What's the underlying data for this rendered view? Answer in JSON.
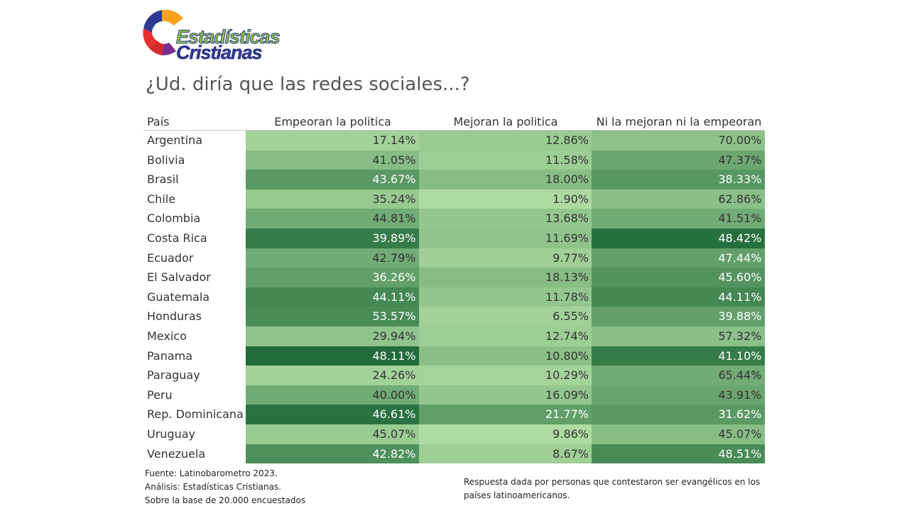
{
  "logo": {
    "line1": "Estadísticas",
    "line2": "Cristianas"
  },
  "chart_data": {
    "type": "table",
    "title": "¿Ud. diría que las redes sociales...?",
    "columns": [
      "País",
      "Empeoran la politica",
      "Mejoran la politica",
      "Ni la mejoran ni la empeoran"
    ],
    "rows": [
      {
        "country": "Argentina",
        "values": [
          "17.14%",
          "12.86%",
          "70.00%"
        ],
        "shades": [
          0.12,
          0.18,
          0.26
        ]
      },
      {
        "country": "Bolivia",
        "values": [
          "41.05%",
          "11.58%",
          "47.37%"
        ],
        "shades": [
          0.3,
          0.16,
          0.48
        ]
      },
      {
        "country": "Brasil",
        "values": [
          "43.67%",
          "18.00%",
          "38.33%"
        ],
        "shades": [
          0.6,
          0.3,
          0.62
        ]
      },
      {
        "country": "Chile",
        "values": [
          "35.24%",
          "1.90%",
          "62.86%"
        ],
        "shades": [
          0.2,
          0.05,
          0.28
        ]
      },
      {
        "country": "Colombia",
        "values": [
          "44.81%",
          "13.68%",
          "41.51%"
        ],
        "shades": [
          0.45,
          0.22,
          0.45
        ]
      },
      {
        "country": "Costa Rica",
        "values": [
          "39.89%",
          "11.69%",
          "48.42%"
        ],
        "shades": [
          0.85,
          0.25,
          0.95
        ]
      },
      {
        "country": "Ecuador",
        "values": [
          "42.79%",
          "9.77%",
          "47.44%"
        ],
        "shades": [
          0.45,
          0.14,
          0.55
        ]
      },
      {
        "country": "El Salvador",
        "values": [
          "36.26%",
          "18.13%",
          "45.60%"
        ],
        "shades": [
          0.55,
          0.3,
          0.65
        ]
      },
      {
        "country": "Guatemala",
        "values": [
          "44.11%",
          "11.78%",
          "44.11%"
        ],
        "shades": [
          0.75,
          0.22,
          0.75
        ]
      },
      {
        "country": "Honduras",
        "values": [
          "53.57%",
          "6.55%",
          "39.88%"
        ],
        "shades": [
          0.72,
          0.12,
          0.55
        ]
      },
      {
        "country": "Mexico",
        "values": [
          "29.94%",
          "12.74%",
          "57.32%"
        ],
        "shades": [
          0.25,
          0.16,
          0.28
        ]
      },
      {
        "country": "Panama",
        "values": [
          "48.11%",
          "10.80%",
          "41.10%"
        ],
        "shades": [
          0.98,
          0.28,
          0.85
        ]
      },
      {
        "country": "Paraguay",
        "values": [
          "24.26%",
          "10.29%",
          "65.44%"
        ],
        "shades": [
          0.12,
          0.1,
          0.45
        ]
      },
      {
        "country": "Peru",
        "values": [
          "40.00%",
          "16.09%",
          "43.91%"
        ],
        "shades": [
          0.45,
          0.22,
          0.5
        ]
      },
      {
        "country": "Rep. Dominicana",
        "values": [
          "46.61%",
          "21.77%",
          "31.62%"
        ],
        "shades": [
          0.92,
          0.55,
          0.6
        ]
      },
      {
        "country": "Uruguay",
        "values": [
          "45.07%",
          "9.86%",
          "45.07%"
        ],
        "shades": [
          0.18,
          0.04,
          0.3
        ]
      },
      {
        "country": "Venezuela",
        "values": [
          "42.82%",
          "8.67%",
          "48.51%"
        ],
        "shades": [
          0.68,
          0.14,
          0.72
        ]
      }
    ],
    "color_scale": [
      "#b4e0a6",
      "#1e6a38"
    ]
  },
  "footer": {
    "source": "Fuente: Latinobarometro 2023.",
    "analysis": "Análisis: Estadísticas Cristianas.",
    "base": "Sobre la base de 20.000 encuestados",
    "note": "Respuesta dada por personas que contestaron ser evangélicos en los países latinoamericanos."
  }
}
